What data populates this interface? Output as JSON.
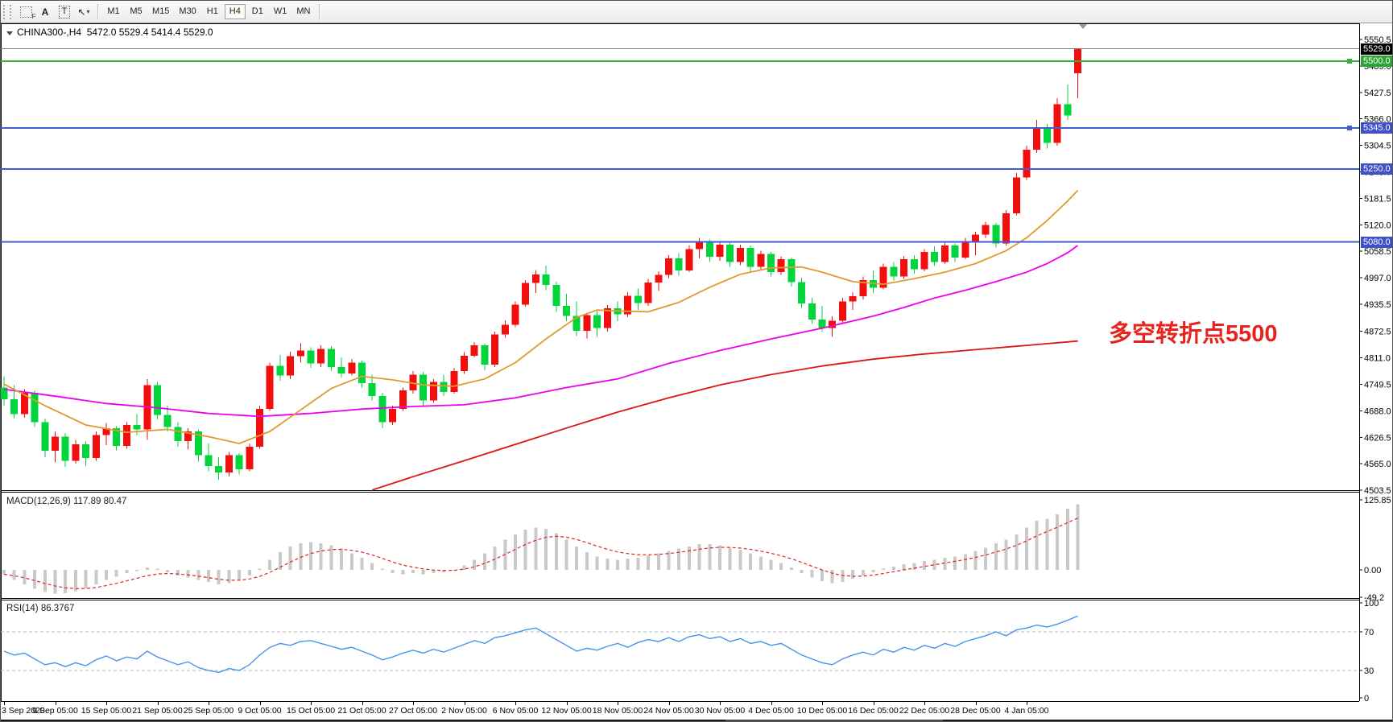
{
  "toolbar": {
    "tool_icons": [
      {
        "name": "frame-tool-icon",
        "label": "F"
      },
      {
        "name": "text-label-tool-icon",
        "label": "A"
      },
      {
        "name": "text-box-tool-icon",
        "label": "T"
      },
      {
        "name": "object-arrows-tool-icon",
        "label": "↖"
      },
      {
        "name": "dropdown-caret-icon",
        "label": "▾"
      }
    ],
    "timeframes": [
      "M1",
      "M5",
      "M15",
      "M30",
      "H1",
      "H4",
      "D1",
      "W1",
      "MN"
    ],
    "selected_timeframe": "H4"
  },
  "chart": {
    "title": {
      "symbol_period": "CHINA300-,H4",
      "ohlc": "5472.0 5529.4 5414.4 5529.0"
    },
    "annotation": {
      "text": "多空转折点5500",
      "color": "#e8231d"
    },
    "hlines": [
      {
        "label": "5529.0",
        "price": 5529.0,
        "line_color": "#7a7a7a",
        "badge_bg": "#000000",
        "width": 1,
        "handle": false,
        "type": "current-price-line"
      },
      {
        "label": "5500.0",
        "price": 5500.0,
        "line_color": "#33b13a",
        "badge_bg": "#2da534",
        "width": 2,
        "handle": true,
        "type": "resistance-line"
      },
      {
        "label": "5345.0",
        "price": 5345.0,
        "line_color": "#3f5fd0",
        "badge_bg": "#3f51c9",
        "width": 2,
        "handle": true,
        "type": "support-line"
      },
      {
        "label": "5250.0",
        "price": 5250.0,
        "line_color": "#3f5fd0",
        "badge_bg": "#3f51c9",
        "width": 2,
        "handle": false,
        "type": "support-line"
      },
      {
        "label": "5080.0",
        "price": 5080.0,
        "line_color": "#3f5fd0",
        "badge_bg": "#3f51c9",
        "width": 2,
        "handle": false,
        "type": "support-line"
      }
    ],
    "price_axis_ticks": [
      "5550.5",
      "5489.0",
      "5427.5",
      "5366.0",
      "5304.5",
      "5243.0",
      "5181.5",
      "5120.0",
      "5058.5",
      "4997.0",
      "4935.5",
      "4872.5",
      "4811.0",
      "4749.5",
      "4688.0",
      "4626.5",
      "4565.0",
      "4503.5"
    ]
  },
  "chart_data": {
    "type": "candlestick",
    "symbol": "CHINA300-,H4",
    "last_ohlc": {
      "open": 5472.0,
      "high": 5529.4,
      "low": 5414.4,
      "close": 5529.0
    },
    "colors": {
      "up": "#f30e0e",
      "down": "#00d53c",
      "ma_fast": "#e09a30",
      "ma_mid": "#ee00ee",
      "ma_slow": "#dd1515",
      "macd_hist": "#c9c9c9",
      "macd_signal": "#e02424",
      "rsi_line": "#4893e8"
    },
    "x_labels": [
      "3 Sep 2020",
      "9 Sep 05:00",
      "15 Sep 05:00",
      "21 Sep 05:00",
      "25 Sep 05:00",
      "9 Oct 05:00",
      "15 Oct 05:00",
      "21 Oct 05:00",
      "27 Oct 05:00",
      "2 Nov 05:00",
      "6 Nov 05:00",
      "12 Nov 05:00",
      "18 Nov 05:00",
      "24 Nov 05:00",
      "30 Nov 05:00",
      "4 Dec 05:00",
      "10 Dec 05:00",
      "16 Dec 05:00",
      "22 Dec 05:00",
      "28 Dec 05:00",
      "4 Jan 05:00"
    ],
    "candles": [
      [
        4742,
        4768,
        4700,
        4715
      ],
      [
        4715,
        4748,
        4670,
        4680
      ],
      [
        4680,
        4738,
        4672,
        4730
      ],
      [
        4730,
        4735,
        4650,
        4662
      ],
      [
        4662,
        4670,
        4580,
        4595
      ],
      [
        4595,
        4640,
        4568,
        4628
      ],
      [
        4628,
        4636,
        4558,
        4572
      ],
      [
        4572,
        4620,
        4565,
        4610
      ],
      [
        4610,
        4618,
        4560,
        4578
      ],
      [
        4578,
        4640,
        4572,
        4632
      ],
      [
        4632,
        4660,
        4608,
        4648
      ],
      [
        4648,
        4652,
        4596,
        4606
      ],
      [
        4606,
        4662,
        4600,
        4655
      ],
      [
        4655,
        4680,
        4632,
        4645
      ],
      [
        4645,
        4762,
        4620,
        4748
      ],
      [
        4748,
        4755,
        4668,
        4678
      ],
      [
        4678,
        4700,
        4640,
        4650
      ],
      [
        4650,
        4662,
        4605,
        4618
      ],
      [
        4618,
        4648,
        4598,
        4640
      ],
      [
        4640,
        4645,
        4570,
        4585
      ],
      [
        4585,
        4612,
        4548,
        4560
      ],
      [
        4560,
        4580,
        4528,
        4545
      ],
      [
        4545,
        4592,
        4535,
        4585
      ],
      [
        4585,
        4590,
        4540,
        4552
      ],
      [
        4552,
        4612,
        4548,
        4605
      ],
      [
        4605,
        4700,
        4600,
        4692
      ],
      [
        4692,
        4800,
        4688,
        4792
      ],
      [
        4792,
        4818,
        4758,
        4770
      ],
      [
        4770,
        4825,
        4762,
        4815
      ],
      [
        4815,
        4845,
        4800,
        4828
      ],
      [
        4828,
        4835,
        4788,
        4798
      ],
      [
        4798,
        4840,
        4790,
        4832
      ],
      [
        4832,
        4838,
        4780,
        4790
      ],
      [
        4790,
        4812,
        4765,
        4775
      ],
      [
        4775,
        4808,
        4770,
        4800
      ],
      [
        4800,
        4805,
        4742,
        4752
      ],
      [
        4752,
        4772,
        4712,
        4722
      ],
      [
        4722,
        4730,
        4648,
        4662
      ],
      [
        4662,
        4700,
        4655,
        4692
      ],
      [
        4692,
        4742,
        4688,
        4735
      ],
      [
        4735,
        4780,
        4728,
        4772
      ],
      [
        4772,
        4778,
        4700,
        4712
      ],
      [
        4712,
        4762,
        4706,
        4755
      ],
      [
        4755,
        4772,
        4722,
        4732
      ],
      [
        4732,
        4788,
        4728,
        4780
      ],
      [
        4780,
        4824,
        4774,
        4816
      ],
      [
        4816,
        4848,
        4812,
        4840
      ],
      [
        4840,
        4845,
        4782,
        4795
      ],
      [
        4795,
        4872,
        4790,
        4865
      ],
      [
        4865,
        4898,
        4858,
        4888
      ],
      [
        4888,
        4942,
        4882,
        4935
      ],
      [
        4935,
        4992,
        4930,
        4985
      ],
      [
        4985,
        5015,
        4962,
        5005
      ],
      [
        5005,
        5025,
        4968,
        4980
      ],
      [
        4980,
        4988,
        4918,
        4932
      ],
      [
        4932,
        4960,
        4896,
        4908
      ],
      [
        4908,
        4942,
        4862,
        4874
      ],
      [
        4874,
        4916,
        4856,
        4910
      ],
      [
        4910,
        4920,
        4860,
        4880
      ],
      [
        4880,
        4934,
        4872,
        4926
      ],
      [
        4926,
        4942,
        4896,
        4912
      ],
      [
        4912,
        4964,
        4906,
        4955
      ],
      [
        4955,
        4972,
        4922,
        4938
      ],
      [
        4938,
        4994,
        4932,
        4986
      ],
      [
        4986,
        5012,
        4966,
        5004
      ],
      [
        5004,
        5050,
        4996,
        5042
      ],
      [
        5042,
        5054,
        5002,
        5014
      ],
      [
        5014,
        5072,
        5010,
        5064
      ],
      [
        5064,
        5090,
        5042,
        5080
      ],
      [
        5080,
        5086,
        5034,
        5046
      ],
      [
        5046,
        5082,
        5036,
        5074
      ],
      [
        5074,
        5080,
        5022,
        5034
      ],
      [
        5034,
        5074,
        5026,
        5066
      ],
      [
        5066,
        5072,
        5010,
        5022
      ],
      [
        5022,
        5060,
        5014,
        5052
      ],
      [
        5052,
        5057,
        5000,
        5010
      ],
      [
        5010,
        5047,
        5004,
        5040
      ],
      [
        5040,
        5044,
        4977,
        4987
      ],
      [
        4987,
        4997,
        4927,
        4937
      ],
      [
        4937,
        4950,
        4890,
        4900
      ],
      [
        4900,
        4932,
        4872,
        4880
      ],
      [
        4880,
        4907,
        4860,
        4897
      ],
      [
        4897,
        4950,
        4892,
        4942
      ],
      [
        4942,
        4964,
        4922,
        4954
      ],
      [
        4954,
        5000,
        4947,
        4992
      ],
      [
        4992,
        5014,
        4962,
        4974
      ],
      [
        4974,
        5030,
        4970,
        5022
      ],
      [
        5022,
        5034,
        4990,
        5000
      ],
      [
        5000,
        5047,
        4994,
        5040
      ],
      [
        5040,
        5050,
        5007,
        5017
      ],
      [
        5017,
        5064,
        5012,
        5057
      ],
      [
        5057,
        5070,
        5024,
        5034
      ],
      [
        5034,
        5080,
        5030,
        5072
      ],
      [
        5072,
        5077,
        5034,
        5044
      ],
      [
        5044,
        5090,
        5040,
        5082
      ],
      [
        5082,
        5104,
        5050,
        5097
      ],
      [
        5097,
        5127,
        5090,
        5120
      ],
      [
        5120,
        5124,
        5067,
        5077
      ],
      [
        5077,
        5154,
        5072,
        5147
      ],
      [
        5147,
        5240,
        5142,
        5230
      ],
      [
        5230,
        5304,
        5224,
        5294
      ],
      [
        5294,
        5364,
        5287,
        5347
      ],
      [
        5347,
        5354,
        5297,
        5310
      ],
      [
        5310,
        5414,
        5304,
        5400
      ],
      [
        5400,
        5446,
        5364,
        5374
      ],
      [
        5472,
        5529.4,
        5414.4,
        5529
      ]
    ],
    "ma_fast_points": [
      [
        0,
        4750
      ],
      [
        4,
        4700
      ],
      [
        8,
        4655
      ],
      [
        12,
        4638
      ],
      [
        16,
        4645
      ],
      [
        20,
        4628
      ],
      [
        23,
        4612
      ],
      [
        26,
        4640
      ],
      [
        29,
        4690
      ],
      [
        32,
        4740
      ],
      [
        35,
        4768
      ],
      [
        38,
        4760
      ],
      [
        41,
        4748
      ],
      [
        44,
        4745
      ],
      [
        47,
        4762
      ],
      [
        50,
        4800
      ],
      [
        53,
        4855
      ],
      [
        56,
        4905
      ],
      [
        58,
        4922
      ],
      [
        60,
        4920
      ],
      [
        63,
        4918
      ],
      [
        66,
        4940
      ],
      [
        69,
        4975
      ],
      [
        72,
        5005
      ],
      [
        75,
        5020
      ],
      [
        78,
        5022
      ],
      [
        80,
        5010
      ],
      [
        83,
        4988
      ],
      [
        86,
        4982
      ],
      [
        89,
        4995
      ],
      [
        92,
        5010
      ],
      [
        95,
        5030
      ],
      [
        98,
        5060
      ],
      [
        100,
        5090
      ],
      [
        102,
        5130
      ],
      [
        104,
        5175
      ],
      [
        105,
        5200
      ]
    ],
    "ma_mid_points": [
      [
        0,
        4738
      ],
      [
        5,
        4722
      ],
      [
        10,
        4705
      ],
      [
        15,
        4695
      ],
      [
        20,
        4682
      ],
      [
        25,
        4675
      ],
      [
        30,
        4682
      ],
      [
        35,
        4692
      ],
      [
        40,
        4698
      ],
      [
        45,
        4702
      ],
      [
        50,
        4718
      ],
      [
        55,
        4742
      ],
      [
        60,
        4762
      ],
      [
        65,
        4798
      ],
      [
        70,
        4828
      ],
      [
        75,
        4855
      ],
      [
        80,
        4880
      ],
      [
        85,
        4908
      ],
      [
        88,
        4928
      ],
      [
        91,
        4950
      ],
      [
        94,
        4968
      ],
      [
        97,
        4988
      ],
      [
        100,
        5010
      ],
      [
        102,
        5030
      ],
      [
        104,
        5055
      ],
      [
        105,
        5072
      ]
    ],
    "ma_slow_points": [
      [
        36,
        4504
      ],
      [
        40,
        4535
      ],
      [
        45,
        4572
      ],
      [
        50,
        4610
      ],
      [
        55,
        4648
      ],
      [
        60,
        4685
      ],
      [
        65,
        4718
      ],
      [
        70,
        4748
      ],
      [
        75,
        4772
      ],
      [
        80,
        4792
      ],
      [
        85,
        4808
      ],
      [
        90,
        4820
      ],
      [
        95,
        4830
      ],
      [
        100,
        4840
      ],
      [
        105,
        4850
      ]
    ],
    "macd": {
      "label": "MACD(12,26,9) 117.89 80.47",
      "params": "12,26,9",
      "main_value": 117.89,
      "signal_value": 80.47,
      "ticks": [
        {
          "label": "125.85",
          "value": 125.85
        },
        {
          "label": "0.00",
          "value": 0
        },
        {
          "label": "-49.2",
          "value": -49.2
        }
      ],
      "values": [
        -8,
        -18,
        -26,
        -34,
        -40,
        -43,
        -42,
        -38,
        -33,
        -26,
        -18,
        -12,
        -6,
        -2,
        4,
        2,
        -4,
        -10,
        -14,
        -18,
        -22,
        -26,
        -24,
        -18,
        -10,
        2,
        18,
        32,
        42,
        48,
        50,
        48,
        44,
        38,
        30,
        22,
        12,
        2,
        -6,
        -8,
        -6,
        -8,
        -6,
        -4,
        0,
        8,
        18,
        30,
        42,
        54,
        64,
        72,
        76,
        74,
        66,
        54,
        42,
        32,
        24,
        20,
        18,
        20,
        22,
        26,
        30,
        34,
        38,
        42,
        46,
        46,
        44,
        40,
        36,
        30,
        24,
        18,
        12,
        4,
        -6,
        -14,
        -20,
        -24,
        -22,
        -16,
        -10,
        -4,
        2,
        6,
        10,
        12,
        16,
        18,
        22,
        24,
        28,
        34,
        40,
        48,
        54,
        64,
        76,
        88,
        92,
        100,
        110,
        118
      ]
    },
    "rsi": {
      "label": "RSI(14) 86.3767",
      "period": 14,
      "value": 86.3767,
      "ticks": [
        {
          "label": "100",
          "value": 100
        },
        {
          "label": "70",
          "value": 70
        },
        {
          "label": "30",
          "value": 30
        },
        {
          "label": "0",
          "value": 0
        }
      ],
      "levels": [
        70,
        30
      ],
      "values": [
        50,
        46,
        48,
        42,
        36,
        38,
        34,
        38,
        35,
        41,
        45,
        40,
        44,
        42,
        50,
        44,
        40,
        36,
        39,
        33,
        30,
        28,
        32,
        30,
        36,
        46,
        54,
        58,
        56,
        60,
        61,
        58,
        55,
        52,
        54,
        50,
        46,
        41,
        44,
        48,
        51,
        48,
        52,
        49,
        53,
        57,
        61,
        58,
        64,
        66,
        69,
        72,
        74,
        68,
        62,
        56,
        50,
        53,
        51,
        55,
        58,
        54,
        59,
        62,
        60,
        64,
        60,
        65,
        67,
        63,
        65,
        60,
        63,
        58,
        60,
        56,
        58,
        52,
        46,
        42,
        38,
        36,
        42,
        46,
        49,
        46,
        52,
        49,
        54,
        51,
        56,
        53,
        58,
        55,
        60,
        63,
        66,
        70,
        66,
        72,
        74,
        77,
        75,
        78,
        82,
        86.4
      ]
    }
  }
}
